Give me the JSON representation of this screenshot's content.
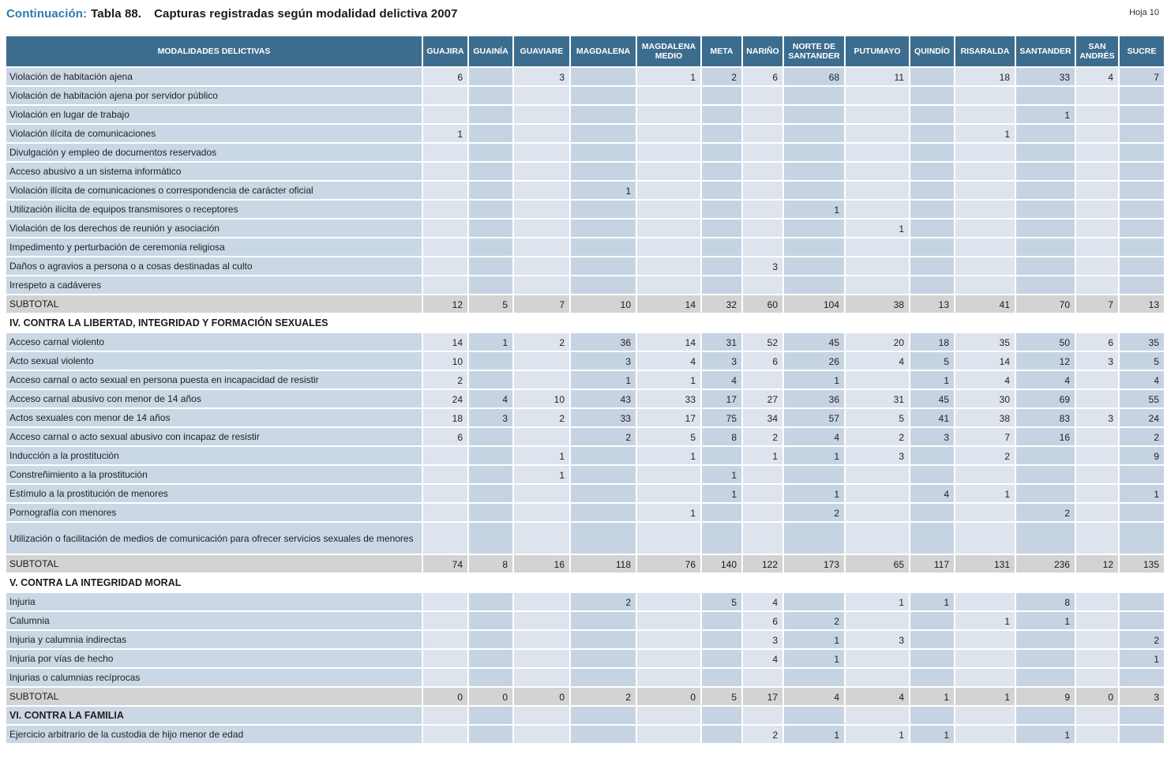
{
  "header": {
    "continuation": "Continuación:",
    "table_number": "Tabla 88.",
    "title": "Capturas registradas según modalidad delictiva 2007",
    "page_label": "Hoja 10",
    "accent_color": "#2b7cab"
  },
  "table": {
    "label_header": "MODALIDADES DELICTIVAS",
    "columns": [
      "GUAJIRA",
      "GUAINÍA",
      "GUAVIARE",
      "MAGDALENA",
      "MAGDALENA MEDIO",
      "META",
      "NARIÑO",
      "NORTE DE SANTANDER",
      "PUTUMAYO",
      "QUINDÍO",
      "RISARALDA",
      "SANTANDER",
      "SAN ANDRÉS",
      "SUCRE"
    ],
    "colors": {
      "header_bg": "#3c6d8e",
      "cell_light": "#dee4ed",
      "cell_dark": "#c6d3e2",
      "label_bg": "#cad7e5",
      "subtotal_bg": "#d3d3d3"
    },
    "rows": [
      {
        "type": "data",
        "label": "Violación de habitación ajena",
        "values": [
          6,
          null,
          3,
          null,
          1,
          2,
          6,
          68,
          11,
          null,
          18,
          33,
          4,
          7
        ]
      },
      {
        "type": "data",
        "label": "Violación de habitación ajena por servidor público",
        "values": [
          null,
          null,
          null,
          null,
          null,
          null,
          null,
          null,
          null,
          null,
          null,
          null,
          null,
          null
        ]
      },
      {
        "type": "data",
        "label": "Violación en lugar de trabajo",
        "values": [
          null,
          null,
          null,
          null,
          null,
          null,
          null,
          null,
          null,
          null,
          null,
          1,
          null,
          null
        ]
      },
      {
        "type": "data",
        "label": "Violación ilícita de comunicaciones",
        "values": [
          1,
          null,
          null,
          null,
          null,
          null,
          null,
          null,
          null,
          null,
          1,
          null,
          null,
          null
        ]
      },
      {
        "type": "data",
        "label": "Divulgación y empleo de documentos reservados",
        "values": [
          null,
          null,
          null,
          null,
          null,
          null,
          null,
          null,
          null,
          null,
          null,
          null,
          null,
          null
        ]
      },
      {
        "type": "data",
        "label": "Acceso abusivo a un sistema informático",
        "values": [
          null,
          null,
          null,
          null,
          null,
          null,
          null,
          null,
          null,
          null,
          null,
          null,
          null,
          null
        ]
      },
      {
        "type": "data",
        "label": "Violación ilícita de comunicaciones o correspondencia de carácter oficial",
        "values": [
          null,
          null,
          null,
          1,
          null,
          null,
          null,
          null,
          null,
          null,
          null,
          null,
          null,
          null
        ]
      },
      {
        "type": "data",
        "label": "Utilización ilícita de equipos transmisores o receptores",
        "values": [
          null,
          null,
          null,
          null,
          null,
          null,
          null,
          1,
          null,
          null,
          null,
          null,
          null,
          null
        ]
      },
      {
        "type": "data",
        "label": "Violación de los derechos de reunión y asociación",
        "values": [
          null,
          null,
          null,
          null,
          null,
          null,
          null,
          null,
          1,
          null,
          null,
          null,
          null,
          null
        ]
      },
      {
        "type": "data",
        "label": "Impedimento y perturbación de ceremonia religiosa",
        "values": [
          null,
          null,
          null,
          null,
          null,
          null,
          null,
          null,
          null,
          null,
          null,
          null,
          null,
          null
        ]
      },
      {
        "type": "data",
        "label": "Daños o agravios a persona o a cosas destinadas al culto",
        "values": [
          null,
          null,
          null,
          null,
          null,
          null,
          3,
          null,
          null,
          null,
          null,
          null,
          null,
          null
        ]
      },
      {
        "type": "data",
        "label": "Irrespeto a cadáveres",
        "values": [
          null,
          null,
          null,
          null,
          null,
          null,
          null,
          null,
          null,
          null,
          null,
          null,
          null,
          null
        ]
      },
      {
        "type": "subtotal",
        "label": "SUBTOTAL",
        "values": [
          12,
          5,
          7,
          10,
          14,
          32,
          60,
          104,
          38,
          13,
          41,
          70,
          7,
          13
        ]
      },
      {
        "type": "section",
        "label": "IV. CONTRA LA LIBERTAD, INTEGRIDAD Y FORMACIÓN SEXUALES"
      },
      {
        "type": "data",
        "label": "Acceso carnal violento",
        "values": [
          14,
          1,
          2,
          36,
          14,
          31,
          52,
          45,
          20,
          18,
          35,
          50,
          6,
          35
        ]
      },
      {
        "type": "data",
        "label": "Acto sexual violento",
        "values": [
          10,
          null,
          null,
          3,
          4,
          3,
          6,
          26,
          4,
          5,
          14,
          12,
          3,
          5
        ]
      },
      {
        "type": "data",
        "label": "Acceso carnal o acto sexual en persona puesta en incapacidad de resistir",
        "values": [
          2,
          null,
          null,
          1,
          1,
          4,
          null,
          1,
          null,
          1,
          4,
          4,
          null,
          4
        ]
      },
      {
        "type": "data",
        "label": "Acceso carnal abusivo con menor de 14 años",
        "values": [
          24,
          4,
          10,
          43,
          33,
          17,
          27,
          36,
          31,
          45,
          30,
          69,
          null,
          55
        ]
      },
      {
        "type": "data",
        "label": "Actos sexuales con menor de 14 años",
        "values": [
          18,
          3,
          2,
          33,
          17,
          75,
          34,
          57,
          5,
          41,
          38,
          83,
          3,
          24
        ]
      },
      {
        "type": "data",
        "label": "Acceso carnal o acto sexual abusivo con incapaz de resistir",
        "values": [
          6,
          null,
          null,
          2,
          5,
          8,
          2,
          4,
          2,
          3,
          7,
          16,
          null,
          2
        ]
      },
      {
        "type": "data",
        "label": "Inducción a la prostitución",
        "values": [
          null,
          null,
          1,
          null,
          1,
          null,
          1,
          1,
          3,
          null,
          2,
          null,
          null,
          9
        ]
      },
      {
        "type": "data",
        "label": "Constreñimiento a la prostitución",
        "values": [
          null,
          null,
          1,
          null,
          null,
          1,
          null,
          null,
          null,
          null,
          null,
          null,
          null,
          null
        ]
      },
      {
        "type": "data",
        "label": "Estímulo a la prostitución de menores",
        "values": [
          null,
          null,
          null,
          null,
          null,
          1,
          null,
          1,
          null,
          4,
          1,
          null,
          null,
          1
        ]
      },
      {
        "type": "data",
        "label": "Pornografía con menores",
        "values": [
          null,
          null,
          null,
          null,
          1,
          null,
          null,
          2,
          null,
          null,
          null,
          2,
          null,
          null
        ]
      },
      {
        "type": "data",
        "tall": true,
        "label": "Utilización o facilitación de medios de comunicación para ofrecer servicios sexuales de menores",
        "values": [
          null,
          null,
          null,
          null,
          null,
          null,
          null,
          null,
          null,
          null,
          null,
          null,
          null,
          null
        ]
      },
      {
        "type": "subtotal",
        "label": "SUBTOTAL",
        "values": [
          74,
          8,
          16,
          118,
          76,
          140,
          122,
          173,
          65,
          117,
          131,
          236,
          12,
          135
        ]
      },
      {
        "type": "section",
        "label": "V. CONTRA LA INTEGRIDAD MORAL"
      },
      {
        "type": "data",
        "label": "Injuria",
        "values": [
          null,
          null,
          null,
          2,
          null,
          5,
          4,
          null,
          1,
          1,
          null,
          8,
          null,
          null
        ]
      },
      {
        "type": "data",
        "label": "Calumnia",
        "values": [
          null,
          null,
          null,
          null,
          null,
          null,
          6,
          2,
          null,
          null,
          1,
          1,
          null,
          null
        ]
      },
      {
        "type": "data",
        "label": "Injuria y calumnia indirectas",
        "values": [
          null,
          null,
          null,
          null,
          null,
          null,
          3,
          1,
          3,
          null,
          null,
          null,
          null,
          2
        ]
      },
      {
        "type": "data",
        "label": "Injuria por vías de hecho",
        "values": [
          null,
          null,
          null,
          null,
          null,
          null,
          4,
          1,
          null,
          null,
          null,
          null,
          null,
          1
        ]
      },
      {
        "type": "data",
        "label": "Injurias o calumnias recíprocas",
        "values": [
          null,
          null,
          null,
          null,
          null,
          null,
          null,
          null,
          null,
          null,
          null,
          null,
          null,
          null
        ]
      },
      {
        "type": "subtotal",
        "label": "SUBTOTAL",
        "values": [
          0,
          0,
          0,
          2,
          0,
          5,
          17,
          4,
          4,
          1,
          1,
          9,
          0,
          3
        ]
      },
      {
        "type": "section-striped",
        "label": "VI. CONTRA LA FAMILIA",
        "values": [
          null,
          null,
          null,
          null,
          null,
          null,
          null,
          null,
          null,
          null,
          null,
          null,
          null,
          null
        ]
      },
      {
        "type": "data",
        "label": "Ejercicio arbitrario de la custodia de hijo menor de edad",
        "values": [
          null,
          null,
          null,
          null,
          null,
          null,
          2,
          1,
          1,
          1,
          null,
          1,
          null,
          null
        ]
      }
    ]
  }
}
